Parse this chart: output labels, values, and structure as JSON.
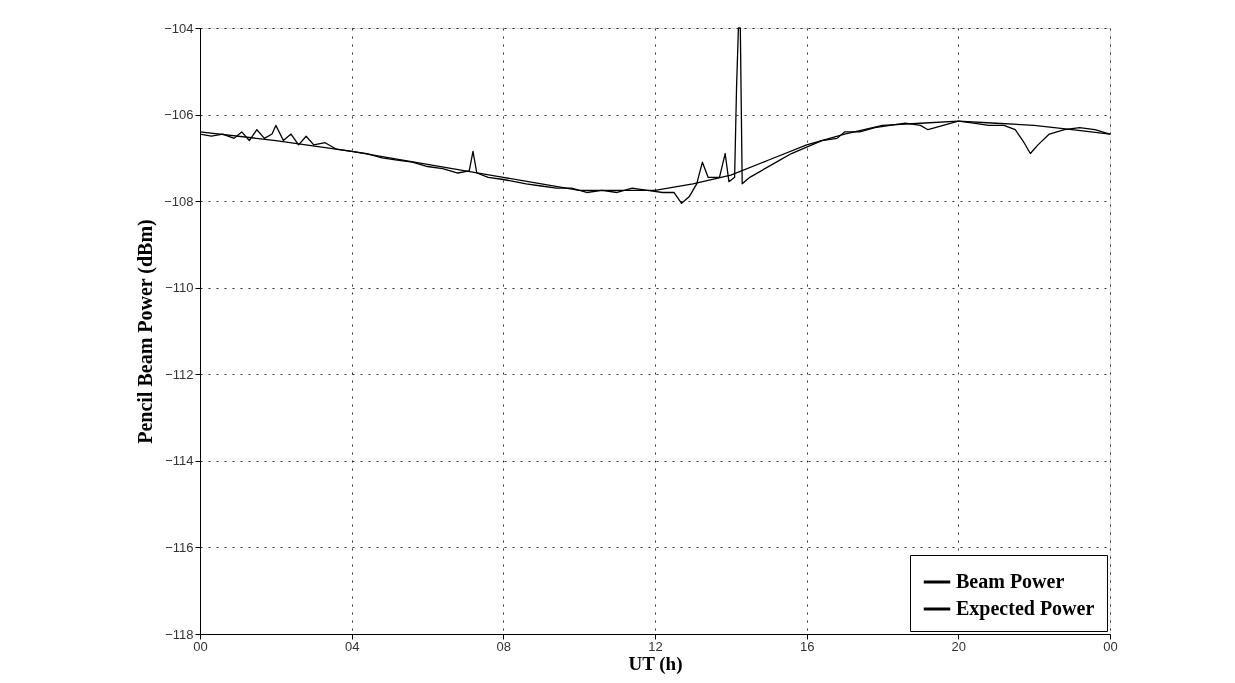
{
  "chart_data": {
    "type": "line",
    "xlabel": "UT (h)",
    "ylabel": "Pencil Beam Power (dBm)",
    "xlim": [
      0,
      24
    ],
    "ylim": [
      -118,
      -104
    ],
    "xticks": [
      {
        "value": 0,
        "label": "00"
      },
      {
        "value": 4,
        "label": "04"
      },
      {
        "value": 8,
        "label": "08"
      },
      {
        "value": 12,
        "label": "12"
      },
      {
        "value": 16,
        "label": "16"
      },
      {
        "value": 20,
        "label": "20"
      },
      {
        "value": 24,
        "label": "00"
      }
    ],
    "yticks": [
      -118,
      -116,
      -114,
      -112,
      -110,
      -108,
      -106,
      -104
    ],
    "grid": true,
    "legend": "bottom right",
    "line_style": "solid",
    "marker": "none",
    "series": [
      {
        "name": "Beam Power",
        "color": "#000000",
        "x": [
          0,
          0.3,
          0.6,
          0.9,
          1.1,
          1.3,
          1.5,
          1.7,
          1.9,
          2.0,
          2.2,
          2.4,
          2.6,
          2.8,
          3.0,
          3.3,
          3.6,
          4.0,
          4.4,
          4.8,
          5.2,
          5.6,
          6.0,
          6.4,
          6.8,
          7.1,
          7.2,
          7.3,
          7.6,
          8.0,
          8.3,
          8.6,
          9.0,
          9.4,
          9.8,
          10.2,
          10.6,
          11.0,
          11.4,
          11.8,
          12.2,
          12.5,
          12.7,
          12.9,
          13.1,
          13.25,
          13.4,
          13.7,
          13.85,
          13.95,
          14.1,
          14.15,
          14.2,
          14.25,
          14.3,
          14.5,
          14.8,
          15.2,
          15.6,
          16.0,
          16.4,
          16.8,
          17.0,
          17.4,
          17.8,
          18.2,
          18.6,
          19.0,
          19.2,
          19.6,
          20.0,
          20.4,
          20.8,
          21.2,
          21.5,
          21.7,
          21.9,
          22.1,
          22.4,
          22.8,
          23.2,
          23.6,
          24.0
        ],
        "values": [
          -106.45,
          -106.5,
          -106.45,
          -106.55,
          -106.4,
          -106.6,
          -106.35,
          -106.55,
          -106.45,
          -106.25,
          -106.6,
          -106.45,
          -106.7,
          -106.5,
          -106.7,
          -106.65,
          -106.8,
          -106.85,
          -106.9,
          -107.0,
          -107.05,
          -107.1,
          -107.2,
          -107.25,
          -107.35,
          -107.3,
          -106.85,
          -107.35,
          -107.45,
          -107.5,
          -107.55,
          -107.6,
          -107.65,
          -107.7,
          -107.7,
          -107.8,
          -107.75,
          -107.8,
          -107.7,
          -107.75,
          -107.8,
          -107.8,
          -108.05,
          -107.9,
          -107.6,
          -107.1,
          -107.45,
          -107.45,
          -106.9,
          -107.55,
          -107.45,
          -105.4,
          -104.0,
          -104.0,
          -107.6,
          -107.45,
          -107.3,
          -107.1,
          -106.9,
          -106.75,
          -106.6,
          -106.55,
          -106.4,
          -106.4,
          -106.3,
          -106.25,
          -106.2,
          -106.25,
          -106.35,
          -106.25,
          -106.15,
          -106.2,
          -106.25,
          -106.25,
          -106.35,
          -106.6,
          -106.9,
          -106.7,
          -106.45,
          -106.35,
          -106.3,
          -106.35,
          -106.45
        ]
      },
      {
        "name": "Expected Power",
        "color": "#000000",
        "x": [
          0,
          2,
          4,
          6,
          8,
          10,
          12,
          13,
          14,
          15,
          16,
          17,
          18,
          19,
          20,
          21,
          22,
          23,
          24
        ],
        "values": [
          -106.4,
          -106.6,
          -106.85,
          -107.15,
          -107.45,
          -107.75,
          -107.75,
          -107.6,
          -107.4,
          -107.05,
          -106.7,
          -106.45,
          -106.25,
          -106.2,
          -106.15,
          -106.2,
          -106.25,
          -106.35,
          -106.45
        ]
      }
    ]
  }
}
